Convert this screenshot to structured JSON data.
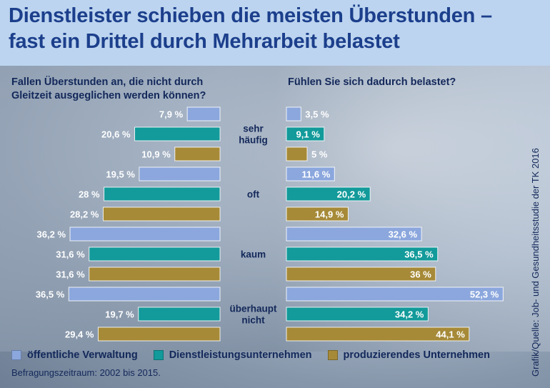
{
  "header": {
    "title_line1": "Dienstleister schieben die meisten Überstunden –",
    "title_line2": "fast ein Drittel durch Mehrarbeit belastet"
  },
  "left_question": {
    "line1": "Fallen Überstunden an, die nicht durch",
    "line2": "Gleitzeit ausgeglichen werden können?"
  },
  "right_question": "Fühlen Sie sich dadurch belastet?",
  "legend": {
    "items": [
      {
        "label": "öffentliche Verwaltung",
        "color": "#8ba7dd"
      },
      {
        "label": "Dienstleistungsunternehmen",
        "color": "#139a9a"
      },
      {
        "label": "produzierendes Unternehmen",
        "color": "#a68a38"
      }
    ]
  },
  "period": "Befragungszeitraum: 2002 bis 2015.",
  "source": "Grafik/Quelle: Job- und Gesundheitsstudie der TK 2016",
  "chart_data": {
    "type": "bar",
    "orientation": "horizontal",
    "categories": [
      {
        "lines": [
          "sehr",
          "häufig"
        ]
      },
      {
        "lines": [
          "oft"
        ]
      },
      {
        "lines": [
          "kaum"
        ]
      },
      {
        "lines": [
          "überhaupt",
          "nicht"
        ]
      }
    ],
    "series_colors": [
      "#8ba7dd",
      "#139a9a",
      "#a68a38"
    ],
    "panels": [
      {
        "side": "left",
        "series": [
          {
            "values": [
              7.9,
              19.5,
              36.2,
              36.5
            ],
            "labels": [
              "7,9 %",
              "19,5 %",
              "36,2 %",
              "36,5 %"
            ]
          },
          {
            "values": [
              20.6,
              28,
              31.6,
              19.7
            ],
            "labels": [
              "20,6 %",
              "28 %",
              "31,6 %",
              "19,7 %"
            ]
          },
          {
            "values": [
              10.9,
              28.2,
              31.6,
              29.4
            ],
            "labels": [
              "10,9 %",
              "28,2 %",
              "31,6 %",
              "29,4 %"
            ]
          }
        ]
      },
      {
        "side": "right",
        "series": [
          {
            "values": [
              3.5,
              11.6,
              32.6,
              52.3
            ],
            "labels": [
              "3,5 %",
              "11,6 %",
              "32,6 %",
              "52,3 %"
            ]
          },
          {
            "values": [
              9.1,
              20.2,
              36.5,
              34.2
            ],
            "labels": [
              "9,1 %",
              "20,2 %",
              "36,5 %",
              "34,2 %"
            ]
          },
          {
            "values": [
              5,
              14.9,
              36,
              44.1
            ],
            "labels": [
              "5 %",
              "14,9 %",
              "36 %",
              "44,1 %"
            ]
          }
        ]
      }
    ]
  }
}
